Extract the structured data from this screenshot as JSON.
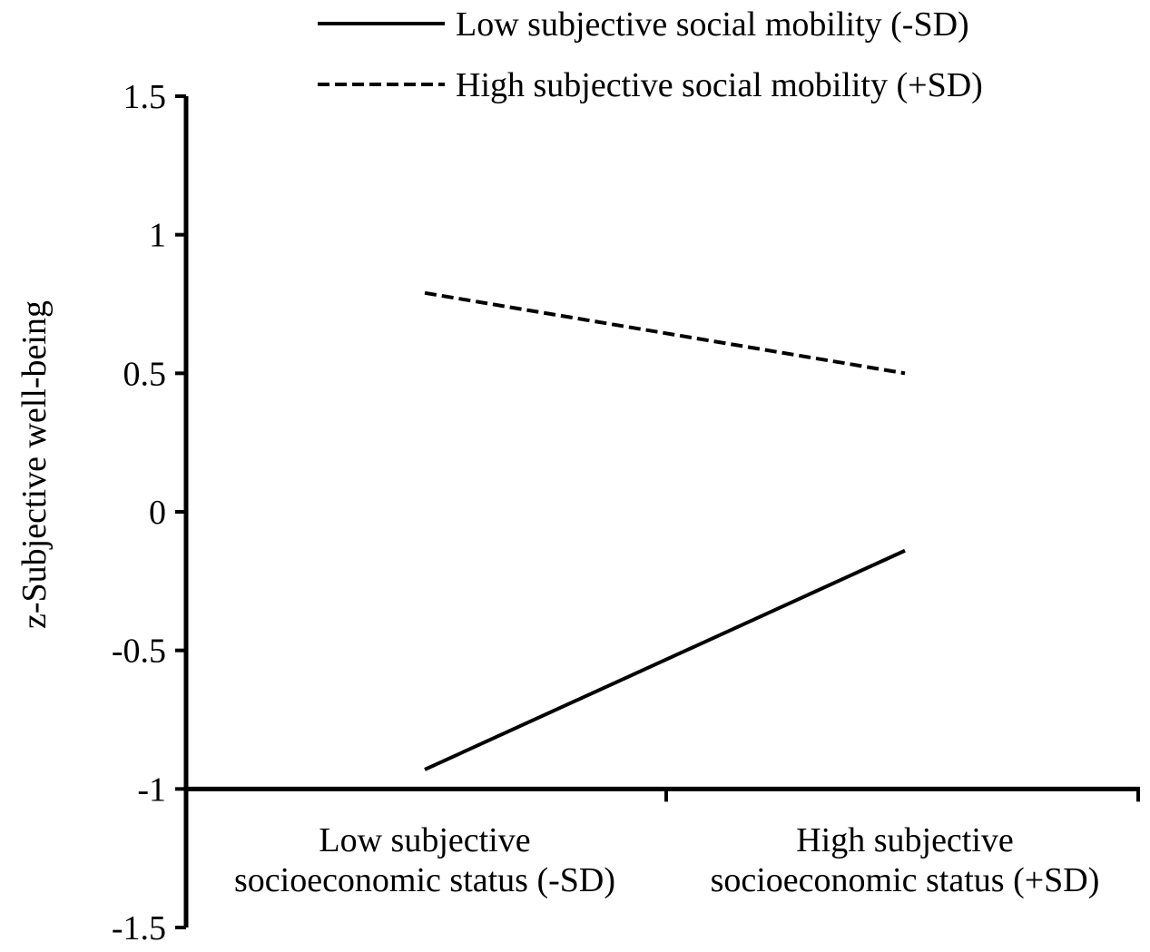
{
  "chart_data": {
    "type": "line",
    "title": "",
    "xlabel": "",
    "ylabel": "z-Subjective well-being",
    "categories": [
      [
        "Low subjective",
        "socioeconomic status (-SD)"
      ],
      [
        "High subjective",
        "socioeconomic status (+SD)"
      ]
    ],
    "ylim": [
      -1.5,
      1.5
    ],
    "y_ticks": [
      1.5,
      1,
      0.5,
      0,
      -0.5,
      -1,
      -1.5
    ],
    "y_tick_labels": [
      "1.5",
      "1",
      "0.5",
      "0",
      "-0.5",
      "-1",
      "-1.5"
    ],
    "x_axis_crosses_at": -1,
    "grid": false,
    "legend_position": "top-right",
    "series": [
      {
        "name": "Low subjective social mobility (-SD)",
        "values": [
          -0.93,
          -0.14
        ],
        "line_style": "solid",
        "color": "#000000"
      },
      {
        "name": "High subjective social mobility (+SD)",
        "values": [
          0.79,
          0.5
        ],
        "line_style": "dashed",
        "color": "#000000"
      }
    ]
  }
}
